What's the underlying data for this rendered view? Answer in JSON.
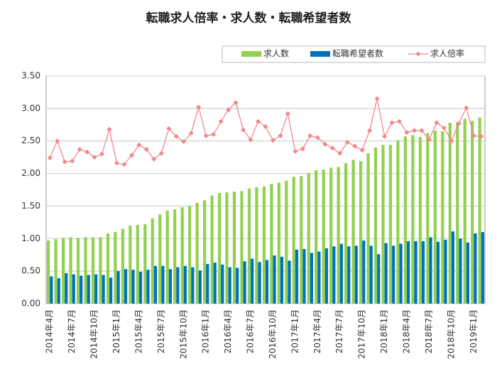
{
  "chart_data": {
    "type": "bar_line",
    "title": "転職求人倍率・求人数・転職希望者数",
    "categories": [
      "2014年4月",
      null,
      null,
      "2014年7月",
      null,
      null,
      "2014年10月",
      null,
      null,
      "2015年1月",
      null,
      null,
      "2015年4月",
      null,
      null,
      "2015年7月",
      null,
      null,
      "2015年10月",
      null,
      null,
      "2016年1月",
      null,
      null,
      "2016年4月",
      null,
      null,
      "2016年7月",
      null,
      null,
      "2016年10月",
      null,
      null,
      "2017年1月",
      null,
      null,
      "2017年4月",
      null,
      null,
      "2017年7月",
      null,
      null,
      "2017年10月",
      null,
      null,
      "2018年1月",
      null,
      null,
      "2018年4月",
      null,
      null,
      "2018年7月",
      null,
      null,
      "2018年10月",
      null,
      null,
      "2019年1月",
      null
    ],
    "series": [
      {
        "name": "求人数",
        "type": "bar",
        "color": "#92d050",
        "values": [
          0.97,
          0.99,
          1.01,
          1.02,
          1.01,
          1.02,
          1.02,
          1.02,
          1.08,
          1.1,
          1.15,
          1.2,
          1.21,
          1.22,
          1.31,
          1.37,
          1.43,
          1.45,
          1.48,
          1.5,
          1.55,
          1.59,
          1.66,
          1.7,
          1.71,
          1.72,
          1.73,
          1.77,
          1.79,
          1.8,
          1.84,
          1.86,
          1.89,
          1.95,
          1.96,
          2.01,
          2.05,
          2.06,
          2.09,
          2.1,
          2.16,
          2.21,
          2.19,
          2.31,
          2.4,
          2.44,
          2.44,
          2.51,
          2.57,
          2.59,
          2.56,
          2.62,
          2.66,
          2.65,
          2.78,
          2.79,
          2.84,
          2.81,
          2.86
        ]
      },
      {
        "name": "転職希望者数",
        "type": "bar",
        "color": "#0070c0",
        "values": [
          0.42,
          0.39,
          0.47,
          0.45,
          0.43,
          0.44,
          0.45,
          0.44,
          0.4,
          0.5,
          0.53,
          0.52,
          0.49,
          0.52,
          0.58,
          0.58,
          0.53,
          0.56,
          0.58,
          0.56,
          0.51,
          0.61,
          0.63,
          0.6,
          0.56,
          0.55,
          0.65,
          0.69,
          0.64,
          0.67,
          0.74,
          0.72,
          0.66,
          0.83,
          0.84,
          0.78,
          0.8,
          0.85,
          0.88,
          0.92,
          0.88,
          0.89,
          0.97,
          0.89,
          0.76,
          0.93,
          0.89,
          0.92,
          0.96,
          0.96,
          0.96,
          1.02,
          0.95,
          0.98,
          1.11,
          1.0,
          0.94,
          1.08,
          1.1
        ]
      },
      {
        "name": "求人倍率",
        "type": "line",
        "color": "#f4868c",
        "values": [
          2.24,
          2.5,
          2.18,
          2.19,
          2.37,
          2.33,
          2.25,
          2.3,
          2.68,
          2.16,
          2.14,
          2.28,
          2.44,
          2.37,
          2.22,
          2.31,
          2.69,
          2.57,
          2.49,
          2.62,
          3.02,
          2.58,
          2.6,
          2.8,
          2.98,
          3.09,
          2.67,
          2.52,
          2.8,
          2.72,
          2.51,
          2.58,
          2.92,
          2.34,
          2.38,
          2.58,
          2.55,
          2.45,
          2.39,
          2.31,
          2.48,
          2.42,
          2.36,
          2.66,
          3.15,
          2.57,
          2.78,
          2.8,
          2.63,
          2.66,
          2.66,
          2.52,
          2.78,
          2.7,
          2.5,
          2.77,
          3.01,
          2.58,
          2.57
        ]
      }
    ],
    "ylim": [
      0,
      3.5
    ],
    "yticks": [
      {
        "value": 0,
        "label": "0.00"
      },
      {
        "value": 0.5,
        "label": "0.50"
      },
      {
        "value": 1,
        "label": "1.00"
      },
      {
        "value": 1.5,
        "label": "1.50"
      },
      {
        "value": 2,
        "label": "2.00"
      },
      {
        "value": 2.5,
        "label": "2.50"
      },
      {
        "value": 3,
        "label": "3.00"
      },
      {
        "value": 3.5,
        "label": "3.50"
      }
    ],
    "grid": true
  }
}
